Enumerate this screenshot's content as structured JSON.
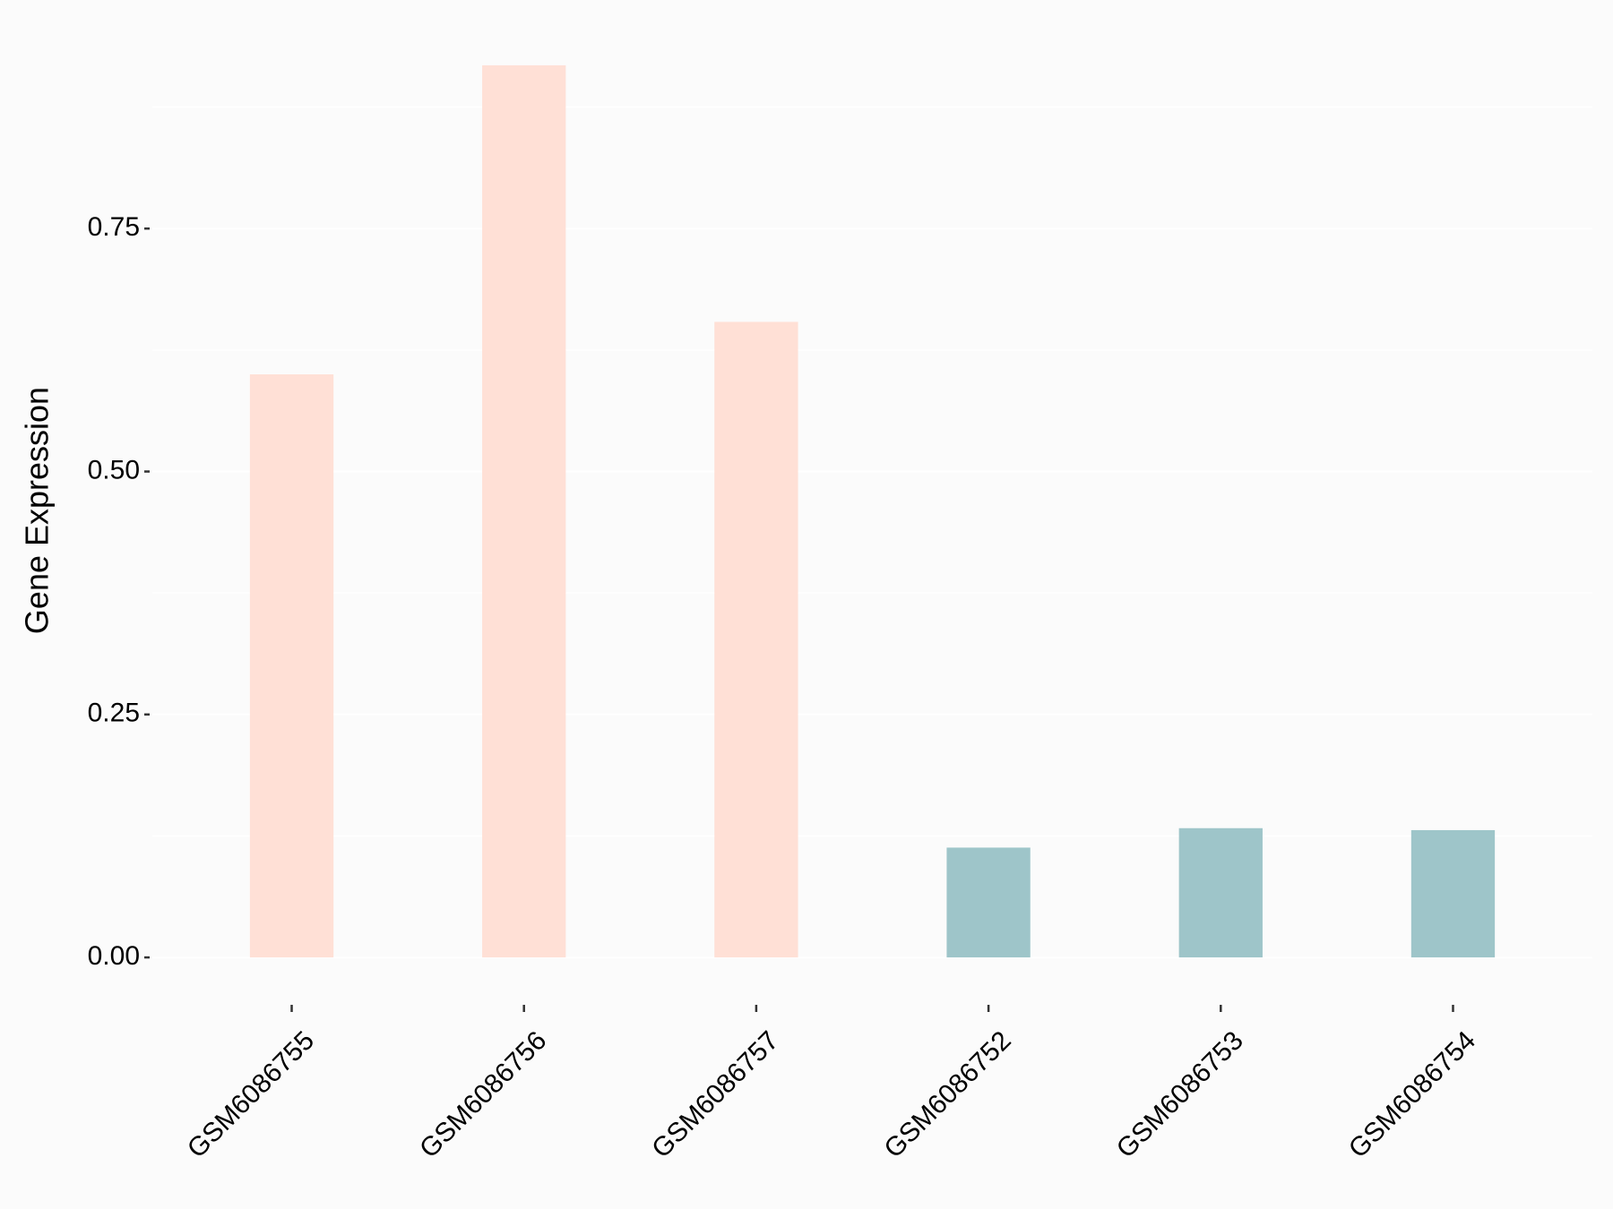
{
  "chart_data": {
    "type": "bar",
    "y_label": "Gene Expression",
    "categories": [
      "GSM6086755",
      "GSM6086756",
      "GSM6086757",
      "GSM6086752",
      "GSM6086753",
      "GSM6086754"
    ],
    "values": [
      0.6,
      0.918,
      0.654,
      0.113,
      0.133,
      0.131
    ],
    "colors": [
      "#FFE0D6",
      "#FFE0D6",
      "#FFE0D6",
      "#9EC5C9",
      "#9EC5C9",
      "#9EC5C9"
    ],
    "ylim": [
      -0.046,
      0.964
    ],
    "yticks": [
      {
        "value": 0,
        "label": "0.00"
      },
      {
        "value": 0.25,
        "label": "0.25"
      },
      {
        "value": 0.5,
        "label": "0.50"
      },
      {
        "value": 0.75,
        "label": "0.75"
      }
    ],
    "y_minor_grid": [
      0.125,
      0.375,
      0.625,
      0.875
    ],
    "grid": true,
    "background": "#FBFBFB"
  }
}
